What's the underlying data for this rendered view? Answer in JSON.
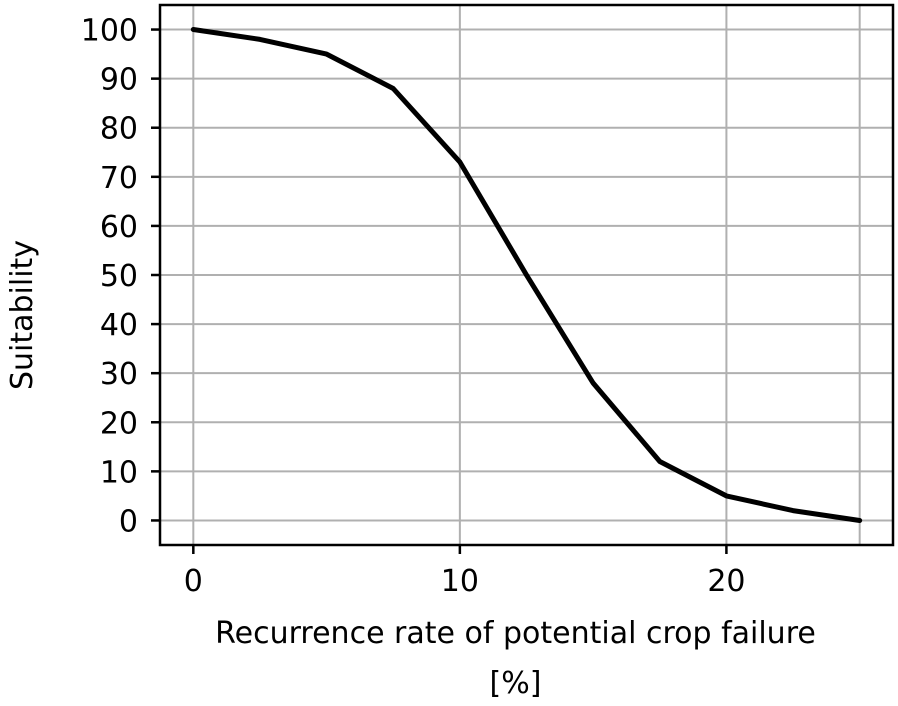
{
  "chart_data": {
    "type": "line",
    "title": "",
    "xlabel_line1": "Recurrence rate of potential crop failure",
    "xlabel_line2": "[%]",
    "ylabel": "Suitability",
    "xlim": [
      -1.25,
      26.25
    ],
    "ylim": [
      -5,
      105
    ],
    "x_ticks": [
      0,
      10,
      20
    ],
    "y_ticks": [
      0,
      10,
      20,
      30,
      40,
      50,
      60,
      70,
      80,
      90,
      100
    ],
    "x_grid": [
      0,
      10,
      20,
      25
    ],
    "grid": true,
    "legend": false,
    "line_color": "#000000",
    "grid_color": "#b0b0b0",
    "series": [
      {
        "x": [
          0,
          2.5,
          5,
          7.5,
          10,
          12.5,
          15,
          17.5,
          20,
          22.5,
          25
        ],
        "y": [
          100,
          98,
          95,
          88,
          73,
          50,
          28,
          12,
          5,
          2,
          0
        ]
      }
    ]
  }
}
